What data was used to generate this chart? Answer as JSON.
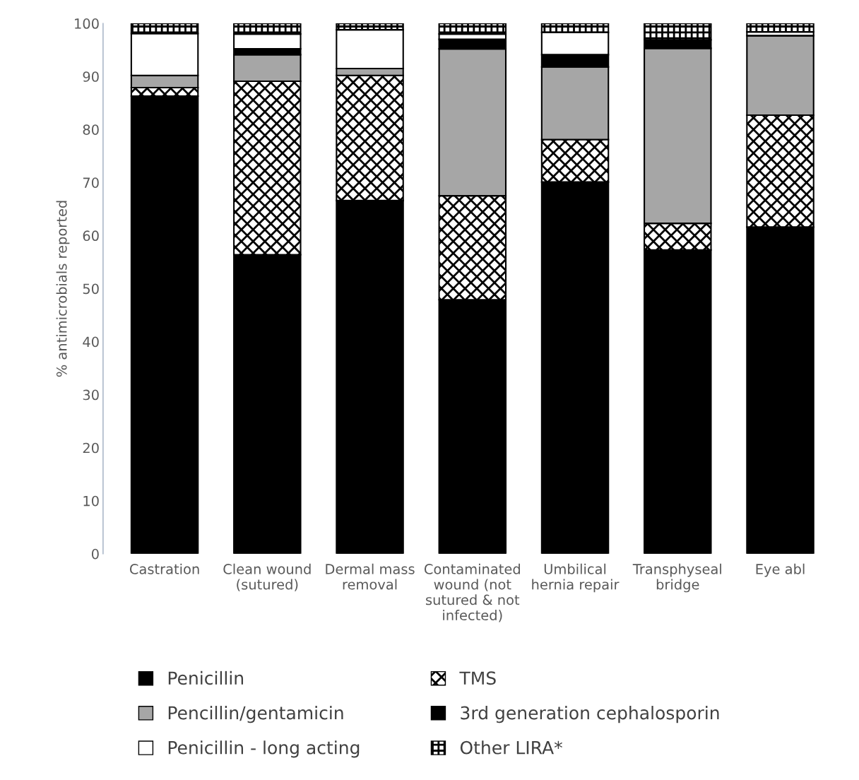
{
  "chart_data": {
    "type": "bar",
    "stacked": true,
    "ylabel": "% antimicrobials reported",
    "categories": [
      "Castration",
      "Clean wound (sutured)",
      "Dermal mass removal",
      "Contaminated wound (not sutured & not infected)",
      "Umbilical hernia repair",
      "Transphyseal bridge",
      "Eye abl"
    ],
    "series": [
      {
        "name": "Penicillin",
        "color": "#000000",
        "values": [
          86.3,
          56.4,
          66.6,
          47.9,
          70.1,
          57.3,
          61.6
        ]
      },
      {
        "name": "TMS",
        "color": "#000000",
        "values": [
          1.6,
          32.7,
          23.6,
          19.6,
          8.0,
          5.0,
          21.1
        ]
      },
      {
        "name": "Pencillin/gentamicin",
        "color": "#a6a6a6",
        "values": [
          2.3,
          5.0,
          1.3,
          27.7,
          13.7,
          33.0,
          15.0
        ]
      },
      {
        "name": "3rd generation cephalosporin",
        "color": "#000000",
        "values": [
          0,
          1.1,
          0,
          1.8,
          2.3,
          1.6,
          0
        ]
      },
      {
        "name": "Penicillin - long acting",
        "color": "#ffffff",
        "values": [
          7.9,
          2.8,
          7.3,
          1.0,
          4.2,
          0,
          0.7
        ]
      },
      {
        "name": "Other LIRA*",
        "color": "#000000",
        "values": [
          1.9,
          2.0,
          1.2,
          2.0,
          1.7,
          3.1,
          1.6
        ]
      }
    ],
    "ylim": [
      0,
      100
    ],
    "yticks": [
      0,
      10,
      20,
      30,
      40,
      50,
      60,
      70,
      80,
      90,
      100
    ],
    "grid": false,
    "legend": "bottom"
  }
}
